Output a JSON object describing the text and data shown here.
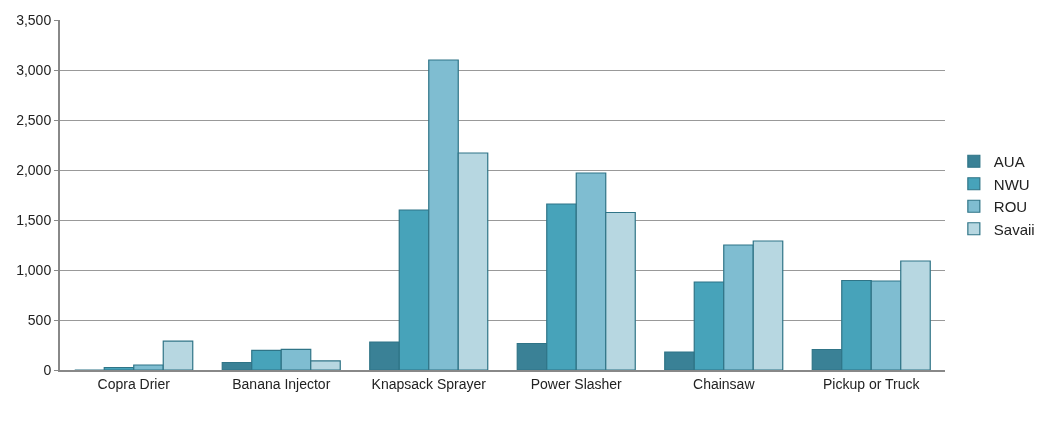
{
  "chart_data": {
    "type": "bar",
    "categories": [
      "Copra Drier",
      "Banana Injector",
      "Knapsack Sprayer",
      "Power Slasher",
      "Chainsaw",
      "Pickup or Truck"
    ],
    "series": [
      {
        "name": "AUA",
        "color": "#3a8196",
        "values": [
          0,
          75,
          280,
          265,
          180,
          205
        ]
      },
      {
        "name": "NWU",
        "color": "#47a3ba",
        "values": [
          25,
          197,
          1600,
          1660,
          880,
          895
        ]
      },
      {
        "name": "ROU",
        "color": "#7fbdd1",
        "values": [
          50,
          206,
          3100,
          1970,
          1250,
          890
        ]
      },
      {
        "name": "Savaii",
        "color": "#b7d7e1",
        "values": [
          288,
          91,
          2170,
          1575,
          1290,
          1090
        ]
      }
    ],
    "ylim": [
      0,
      3500
    ],
    "yticks": [
      0,
      {
        "value": 500,
        "label": "500"
      },
      {
        "value": 1000,
        "label": "1,000"
      },
      {
        "value": 1500,
        "label": "1,500"
      },
      {
        "value": 2000,
        "label": "2,000"
      },
      {
        "value": 2500,
        "label": "2,500"
      },
      {
        "value": 3000,
        "label": "3,000"
      },
      {
        "value": 3500,
        "label": "3,500"
      }
    ],
    "grid": "y",
    "legend": "right"
  }
}
